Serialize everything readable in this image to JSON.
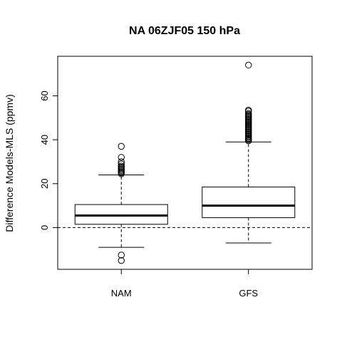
{
  "chart_data": {
    "type": "boxplot",
    "title": "NA 06ZJF05 150 hPa",
    "xlabel": "",
    "ylabel": "Difference Models-MLS (ppmv)",
    "categories": [
      "NAM",
      "GFS"
    ],
    "ylim": [
      -19,
      78
    ],
    "yticks": [
      0,
      20,
      40,
      60
    ],
    "reference_line": {
      "y": 0,
      "style": "dashed"
    },
    "grid": false,
    "legend": "none",
    "boxes": [
      {
        "name": "NAM",
        "whisker_low": -9,
        "q1": 1.5,
        "median": 5.5,
        "q3": 10.5,
        "whisker_high": 24,
        "outliers": [
          -15,
          -12.5,
          24.5,
          25,
          25.5,
          26,
          26.5,
          27,
          27.5,
          28,
          29,
          30,
          32,
          37
        ]
      },
      {
        "name": "GFS",
        "whisker_low": -7,
        "q1": 4.5,
        "median": 10,
        "q3": 18.5,
        "whisker_high": 39,
        "outliers": [
          39.5,
          40,
          40.5,
          41,
          41.5,
          42,
          42.5,
          43,
          43.5,
          44,
          44.5,
          45,
          45.5,
          46,
          46.5,
          47,
          47.5,
          48,
          48.5,
          49,
          49.5,
          50,
          50.5,
          51,
          51.5,
          52,
          53,
          53.5,
          74
        ]
      }
    ]
  }
}
